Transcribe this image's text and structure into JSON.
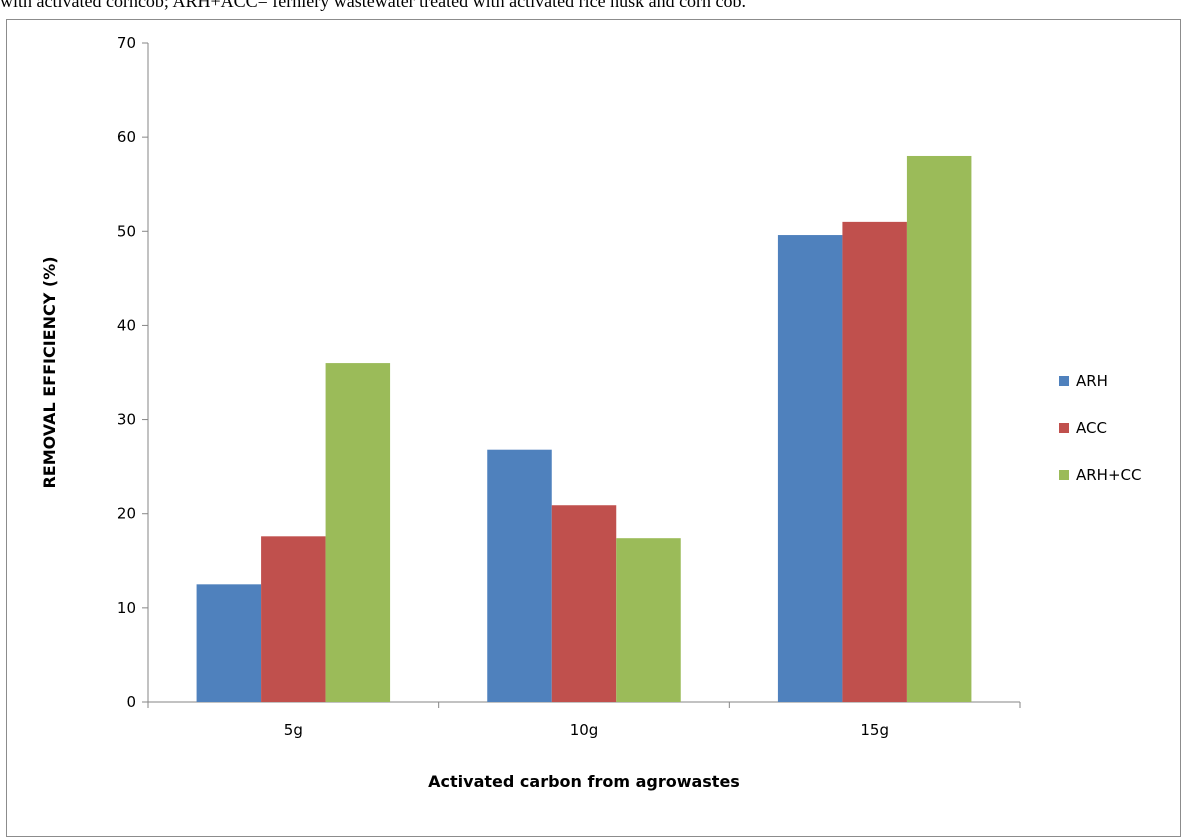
{
  "caption": "with activated corncob; ARH+ACC= ferniery wastewater treated with activated rice husk and corn cob.",
  "chart_data": {
    "type": "bar",
    "title": "",
    "xlabel": "Activated carbon  from agrowastes",
    "ylabel": "REMOVAL EFFICIENCY (%)",
    "categories": [
      "5g",
      "10g",
      "15g"
    ],
    "ylim": [
      0,
      70
    ],
    "yticks": [
      0,
      10,
      20,
      30,
      40,
      50,
      60,
      70
    ],
    "grid": false,
    "legend_position": "right",
    "series": [
      {
        "name": "ARH",
        "color": "#4f81bd",
        "values": [
          12.5,
          26.8,
          49.6
        ]
      },
      {
        "name": "ACC",
        "color": "#c0504d",
        "values": [
          17.6,
          20.9,
          51.0
        ]
      },
      {
        "name": "ARH+CC",
        "color": "#9bbb59",
        "values": [
          36.0,
          17.4,
          58.0
        ]
      }
    ]
  }
}
